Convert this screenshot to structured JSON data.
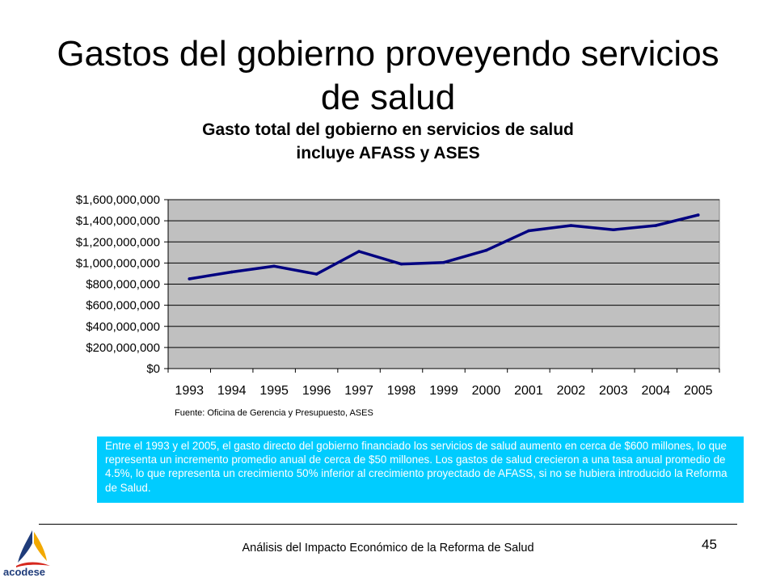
{
  "slide": {
    "title": "Gastos del gobierno proveyendo servicios de salud",
    "chart_title_line1": "Gasto total del gobierno en servicios de salud",
    "chart_title_line2": "incluye AFASS y ASES",
    "source": "Fuente: Oficina de Gerencia y Presupuesto, ASES",
    "callout": "Entre el 1993 y el 2005, el gasto directo del gobierno financiado los servicios de salud aumento en cerca de $600 millones, lo que representa un incremento promedio anual de cerca de $50 millones. Los gastos de salud crecieron a una tasa anual promedio de 4.5%, lo que representa un crecimiento 50% inferior al crecimiento proyectado de AFASS, si no se hubiera introducido la Reforma de Salud.",
    "footer": "Análisis del Impacto Económico de la Reforma de Salud",
    "page_number": "45",
    "logo_text": "acodese"
  },
  "colors": {
    "plot_background": "#c0c0c0",
    "line": "#000080",
    "callout_background": "#00ccff",
    "callout_text": "#ffffff"
  },
  "chart_data": {
    "type": "line",
    "title": "Gasto total del gobierno en servicios de salud incluye AFASS y ASES",
    "x": [
      "1993",
      "1994",
      "1995",
      "1996",
      "1997",
      "1998",
      "1999",
      "2000",
      "2001",
      "2002",
      "2003",
      "2004",
      "2005"
    ],
    "series": [
      {
        "values": [
          850000000,
          915000000,
          970000000,
          895000000,
          1110000000,
          990000000,
          1005000000,
          1120000000,
          1305000000,
          1355000000,
          1315000000,
          1355000000,
          1455000000
        ]
      }
    ],
    "ylim": [
      0,
      1600000000
    ],
    "y_ticks": [
      0,
      200000000,
      400000000,
      600000000,
      800000000,
      1000000000,
      1200000000,
      1400000000,
      1600000000
    ],
    "y_tick_labels": [
      "$0",
      "$200,000,000",
      "$400,000,000",
      "$600,000,000",
      "$800,000,000",
      "$1,000,000,000",
      "$1,200,000,000",
      "$1,400,000,000",
      "$1,600,000,000"
    ],
    "grid": true,
    "legend": "none"
  }
}
